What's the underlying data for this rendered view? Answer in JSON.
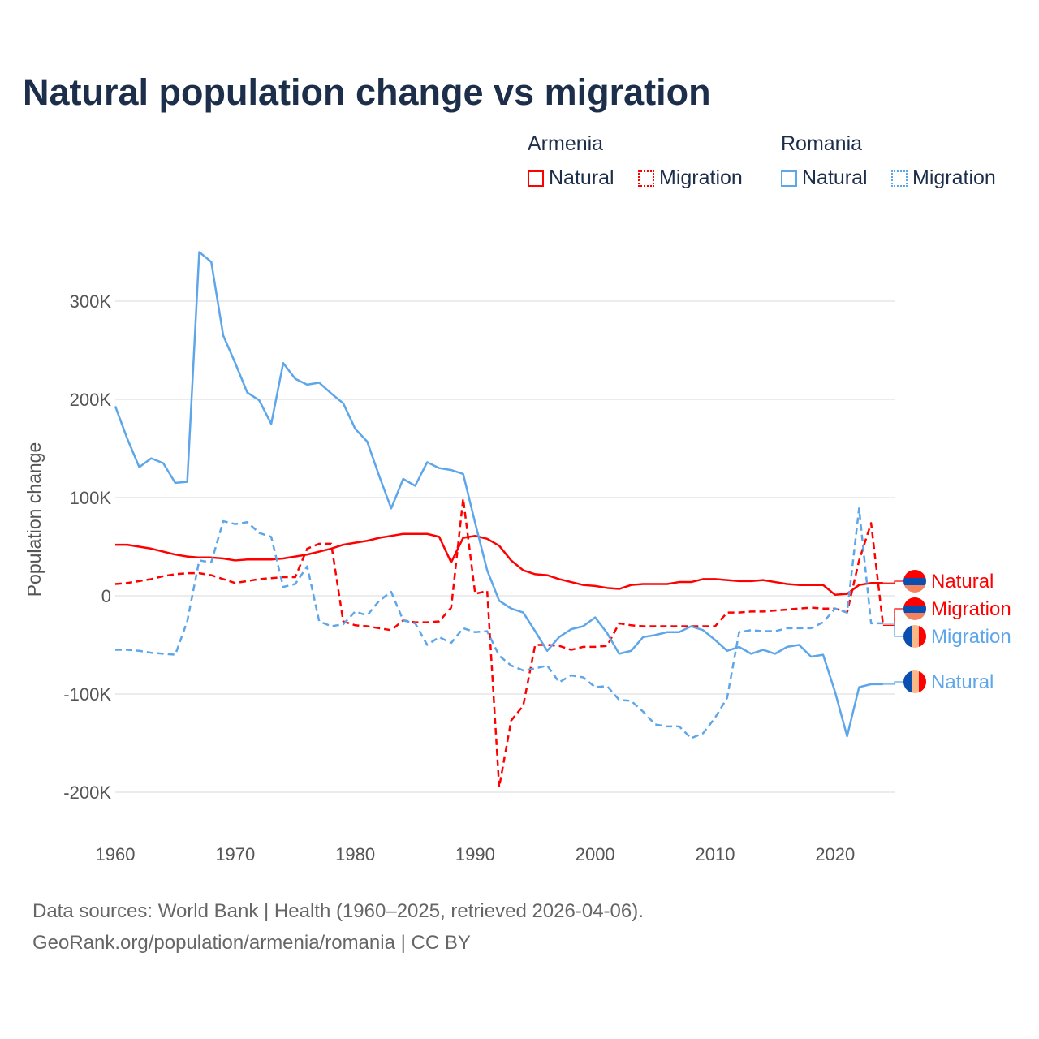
{
  "chart_data": {
    "type": "line",
    "title": "Natural population change vs migration",
    "xlabel": "",
    "ylabel": "Population change",
    "ylim": [
      -220000,
      360000
    ],
    "xlim": [
      1960,
      2025
    ],
    "grid": true,
    "x_ticks": [
      "1960",
      "1970",
      "1980",
      "1990",
      "2000",
      "2010",
      "2020"
    ],
    "y_ticks": [
      {
        "v": 300000,
        "label": "300K"
      },
      {
        "v": 200000,
        "label": "200K"
      },
      {
        "v": 100000,
        "label": "100K"
      },
      {
        "v": 0,
        "label": "0"
      },
      {
        "v": -100000,
        "label": "-100K"
      },
      {
        "v": -200000,
        "label": "-200K"
      }
    ],
    "legend": {
      "placement": "top-right",
      "groups": [
        {
          "country": "Armenia",
          "items": [
            "Natural",
            "Migration"
          ]
        },
        {
          "country": "Romania",
          "items": [
            "Natural",
            "Migration"
          ]
        }
      ]
    },
    "x_start": 1960,
    "series": [
      {
        "name": "Armenia Natural",
        "country": "Armenia",
        "kind": "Natural",
        "color": "#ff0000",
        "dashed": false,
        "end_label": "Natural",
        "values_k": [
          52,
          52,
          50,
          48,
          45,
          42,
          40,
          39,
          39,
          38,
          36,
          37,
          37,
          37,
          38,
          40,
          42,
          45,
          48,
          52,
          54,
          56,
          59,
          61,
          63,
          63,
          63,
          60,
          34,
          59,
          61,
          58,
          51,
          36,
          26,
          22,
          21,
          17,
          14,
          11,
          10,
          8,
          7,
          11,
          12,
          12,
          12,
          14,
          14,
          17,
          17,
          16,
          15,
          15,
          16,
          14,
          12,
          11,
          11,
          11,
          1,
          2,
          11,
          13,
          13
        ]
      },
      {
        "name": "Armenia Migration",
        "country": "Armenia",
        "kind": "Migration",
        "color": "#ff0000",
        "dashed": true,
        "end_label": "Migration",
        "values_k": [
          12,
          13,
          15,
          17,
          20,
          22,
          23,
          23,
          21,
          17,
          13,
          15,
          17,
          18,
          19,
          19,
          48,
          53,
          53,
          -26,
          -30,
          -31,
          -33,
          -35,
          -25,
          -27,
          -27,
          -26,
          -12,
          99,
          2,
          5,
          -195,
          -127,
          -112,
          -50,
          -50,
          -51,
          -55,
          -52,
          -52,
          -51,
          -28,
          -30,
          -31,
          -31,
          -31,
          -31,
          -31,
          -31,
          -31,
          -17,
          -17,
          -16,
          -16,
          -15,
          -14,
          -13,
          -12,
          -13,
          -13,
          -17,
          36,
          74,
          -30
        ]
      },
      {
        "name": "Romania Natural",
        "country": "Romania",
        "kind": "Natural",
        "color": "#5ea6ea",
        "dashed": false,
        "end_label": "Natural",
        "values_k": [
          193,
          160,
          131,
          140,
          135,
          115,
          116,
          350,
          340,
          265,
          237,
          207,
          199,
          175,
          237,
          221,
          215,
          217,
          206,
          196,
          170,
          157,
          122,
          89,
          119,
          112,
          136,
          130,
          128,
          124,
          74,
          26,
          -5,
          -13,
          -17,
          -36,
          -56,
          -42,
          -34,
          -31,
          -22,
          -38,
          -59,
          -56,
          -42,
          -40,
          -37,
          -37,
          -31,
          -35,
          -45,
          -56,
          -52,
          -59,
          -55,
          -59,
          -52,
          -50,
          -62,
          -60,
          -98,
          -143,
          -93,
          -90,
          -90
        ]
      },
      {
        "name": "Romania Migration",
        "country": "Romania",
        "kind": "Migration",
        "color": "#5ea6ea",
        "dashed": true,
        "end_label": "Migration",
        "values_k": [
          -55,
          -55,
          -56,
          -58,
          -59,
          -60,
          -26,
          36,
          34,
          76,
          73,
          75,
          64,
          60,
          9,
          12,
          30,
          -26,
          -31,
          -29,
          -16,
          -20,
          -5,
          4,
          -25,
          -28,
          -50,
          -42,
          -48,
          -33,
          -37,
          -36,
          -61,
          -71,
          -76,
          -74,
          -71,
          -88,
          -81,
          -83,
          -93,
          -92,
          -106,
          -107,
          -118,
          -131,
          -133,
          -133,
          -145,
          -140,
          -124,
          -104,
          -37,
          -35,
          -36,
          -36,
          -33,
          -33,
          -33,
          -27,
          -13,
          -17,
          89,
          -28,
          -28
        ]
      }
    ]
  },
  "footer": {
    "line1": "Data sources: World Bank | Health (1960–2025, retrieved 2026-04-06).",
    "line2": "GeoRank.org/population/armenia/romania | CC BY"
  }
}
